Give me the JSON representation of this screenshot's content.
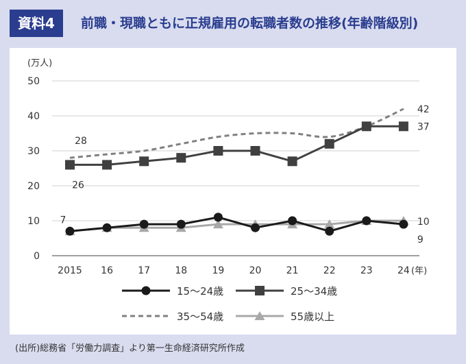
{
  "header": {
    "badge": "資料4",
    "title": "前職・現職ともに正規雇用の転職者数の推移(年齢階級別)"
  },
  "source": "(出所)総務省「労働力調査」より第一生命経済研究所作成",
  "colors": {
    "accent": "#2a3d8f",
    "background": "#d9dcef",
    "series_15_24": "#1a1a1a",
    "series_25_34": "#404040",
    "series_35_54": "#808080",
    "series_55_plus": "#a8a8a8"
  },
  "chart_data": {
    "type": "line",
    "yunit": "(万人)",
    "xunit": "(年)",
    "ylim": [
      0,
      50
    ],
    "yticks": [
      0,
      10,
      20,
      30,
      40,
      50
    ],
    "categories": [
      "2015",
      "16",
      "17",
      "18",
      "19",
      "20",
      "21",
      "22",
      "23",
      "24"
    ],
    "series": [
      {
        "name": "15～24歳",
        "style": "solid-circle",
        "values": [
          7,
          8,
          9,
          9,
          11,
          8,
          10,
          7,
          10,
          9
        ]
      },
      {
        "name": "25～34歳",
        "style": "solid-square",
        "values": [
          26,
          26,
          27,
          28,
          30,
          30,
          27,
          32,
          37,
          37
        ]
      },
      {
        "name": "35～54歳",
        "style": "dashed",
        "values": [
          28,
          29,
          30,
          32,
          34,
          35,
          35,
          34,
          37,
          42
        ]
      },
      {
        "name": "55歳以上",
        "style": "solid-triangle",
        "values": [
          7,
          8,
          8,
          8,
          9,
          9,
          9,
          9,
          10,
          10
        ]
      }
    ],
    "data_labels": [
      {
        "series": "35～54歳",
        "category": "2015",
        "text": "28"
      },
      {
        "series": "25～34歳",
        "category": "2015",
        "text": "26"
      },
      {
        "series": "15～24歳",
        "category": "2015",
        "text": "7"
      },
      {
        "series": "35～54歳",
        "category": "24",
        "text": "42"
      },
      {
        "series": "25～34歳",
        "category": "24",
        "text": "37"
      },
      {
        "series": "55歳以上",
        "category": "24",
        "text": "10"
      },
      {
        "series": "15～24歳",
        "category": "24",
        "text": "9"
      }
    ]
  }
}
